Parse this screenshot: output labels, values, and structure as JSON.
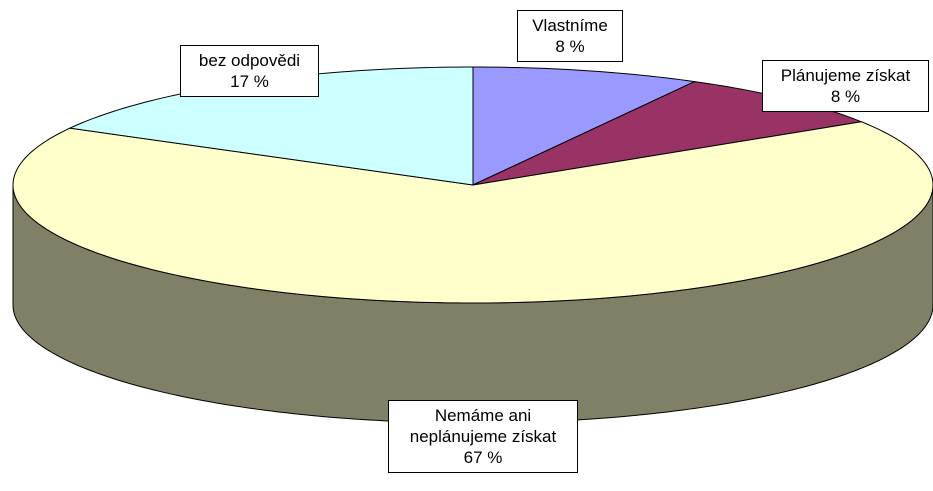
{
  "chart_data": {
    "type": "pie",
    "categories": [
      "Vlastníme",
      "Plánujeme získat",
      "Nemáme ani neplánujeme získat",
      "bez odpovědi"
    ],
    "values": [
      8,
      8,
      67,
      17
    ],
    "value_labels": [
      "8 %",
      "8 %",
      "67 %",
      "17 %"
    ],
    "colors": [
      "#9999ff",
      "#993366",
      "#ffffcc",
      "#ccffff"
    ]
  }
}
